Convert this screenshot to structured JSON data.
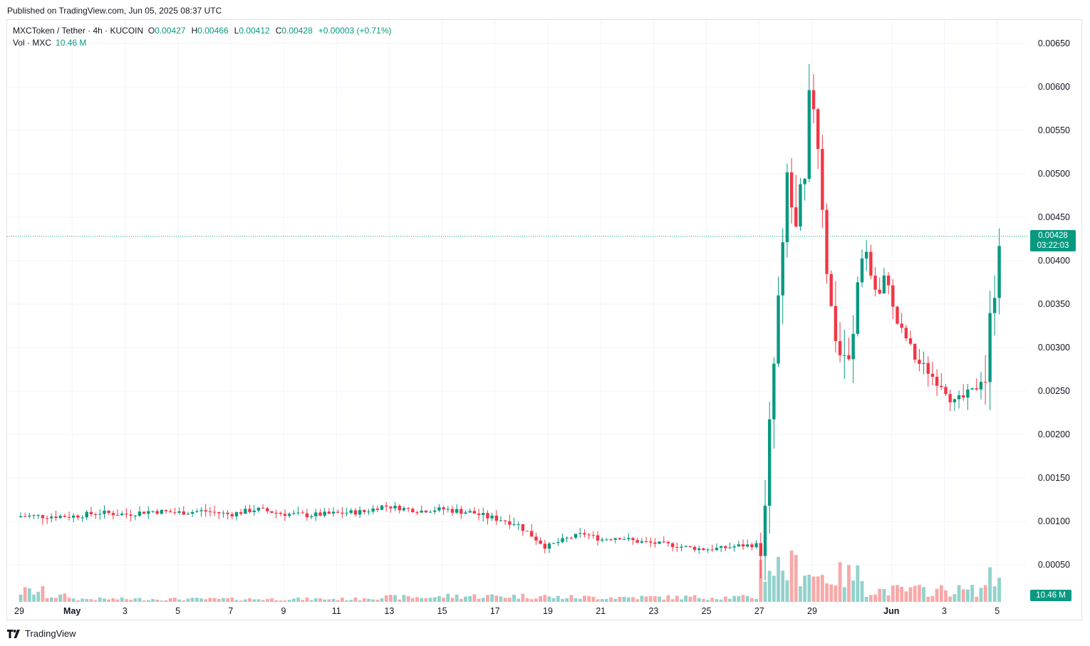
{
  "published": "Published on TradingView.com, Jun 05, 2025 08:37 UTC",
  "legend": {
    "symbol": "MXCToken / Tether · 4h · KUCOIN",
    "o_label": "O",
    "o_value": "0.00427",
    "h_label": "H",
    "h_value": "0.00466",
    "l_label": "L",
    "l_value": "0.00412",
    "c_label": "C",
    "c_value": "0.00428",
    "change": "+0.00003 (+0.71%)",
    "vol_label": "Vol · MXC",
    "vol_value": "10.46 M"
  },
  "price_tag": {
    "price": "0.00428",
    "countdown": "03:22:03"
  },
  "volume_tag": "10.46 M",
  "brand": "TradingView",
  "colors": {
    "up": "#089981",
    "down": "#f23645",
    "vol_up": "#92d2cc",
    "vol_down": "#f7a9a7",
    "grid": "#f0f3fa"
  },
  "chart_data": {
    "type": "candlestick",
    "interval": "4h",
    "y_axis_ticks": [
      "0.00050",
      "0.00100",
      "0.00150",
      "0.00200",
      "0.00250",
      "0.00300",
      "0.00350",
      "0.00400",
      "0.00450",
      "0.00500",
      "0.00550",
      "0.00600",
      "0.00650"
    ],
    "x_axis_labels": [
      {
        "text": "29",
        "day": 0
      },
      {
        "text": "May",
        "day": 2
      },
      {
        "text": "3",
        "day": 4
      },
      {
        "text": "5",
        "day": 6
      },
      {
        "text": "7",
        "day": 8
      },
      {
        "text": "9",
        "day": 10
      },
      {
        "text": "11",
        "day": 12
      },
      {
        "text": "13",
        "day": 14
      },
      {
        "text": "15",
        "day": 16
      },
      {
        "text": "17",
        "day": 18
      },
      {
        "text": "19",
        "day": 20
      },
      {
        "text": "21",
        "day": 22
      },
      {
        "text": "23",
        "day": 24
      },
      {
        "text": "25",
        "day": 26
      },
      {
        "text": "27",
        "day": 28
      },
      {
        "text": "29",
        "day": 30
      },
      {
        "text": "Jun",
        "day": 33
      },
      {
        "text": "3",
        "day": 35
      },
      {
        "text": "5",
        "day": 37
      }
    ],
    "last_price": 0.00428,
    "segments": [
      {
        "start": 0,
        "end": 1,
        "p": [
          0.00106,
          0.00106
        ],
        "wick": 8e-05,
        "vol": 18
      },
      {
        "start": 1,
        "end": 2,
        "p": [
          0.00106,
          0.00106
        ],
        "wick": 7e-05,
        "vol": 10
      },
      {
        "start": 2,
        "end": 13,
        "p": [
          0.00106,
          0.0011,
          0.00108,
          0.00112,
          0.0011,
          0.00112,
          0.00108,
          0.00114,
          0.00109,
          0.00107,
          0.00109,
          0.00111
        ],
        "wick": 7e-05,
        "vol": 5
      },
      {
        "start": 13,
        "end": 16,
        "p": [
          0.00111,
          0.00118,
          0.00115,
          0.00112,
          0.00114
        ],
        "wick": 6e-05,
        "vol": 8
      },
      {
        "start": 16,
        "end": 20,
        "p": [
          0.00114,
          0.00112,
          0.0011,
          0.00105,
          0.00102,
          0.00098,
          0.00085,
          0.00072
        ],
        "wick": 8e-05,
        "vol": 10
      },
      {
        "start": 20,
        "end": 28,
        "p": [
          0.00072,
          0.0008,
          0.00086,
          0.00079,
          0.00082,
          0.00077,
          0.00075,
          0.00073,
          0.0007,
          0.00068,
          0.00069,
          0.00072,
          0.00073
        ],
        "wick": 6e-05,
        "vol": 8
      },
      {
        "start": 28,
        "end": 30,
        "p": [
          0.00073,
          0.0009,
          0.0019,
          0.0023,
          0.0032,
          0.00365,
          0.0041,
          0.005,
          0.0047,
          0.0044,
          0.0042,
          0.005,
          0.0048,
          0.0058
        ],
        "wick": 0.0004,
        "vol": 60
      },
      {
        "start": 30,
        "end": 32,
        "p": [
          0.0058,
          0.0054,
          0.0048,
          0.004,
          0.0037,
          0.003,
          0.0033,
          0.0026,
          0.0031,
          0.0027,
          0.0032,
          0.0038,
          0.0041
        ],
        "wick": 0.0003,
        "vol": 45
      },
      {
        "start": 32,
        "end": 36.5,
        "p": [
          0.0041,
          0.0037,
          0.0036,
          0.0039,
          0.0034,
          0.0032,
          0.0031,
          0.0029,
          0.0028,
          0.00275,
          0.00265,
          0.0026,
          0.0025,
          0.00235,
          0.0024,
          0.00245,
          0.0025,
          0.00265
        ],
        "wick": 0.00015,
        "vol": 20
      },
      {
        "start": 36.5,
        "end": 37.2,
        "p": [
          0.00265,
          0.0035,
          0.0032,
          0.00345,
          0.0042,
          0.00428
        ],
        "wick": 0.00035,
        "vol": 40
      }
    ]
  }
}
